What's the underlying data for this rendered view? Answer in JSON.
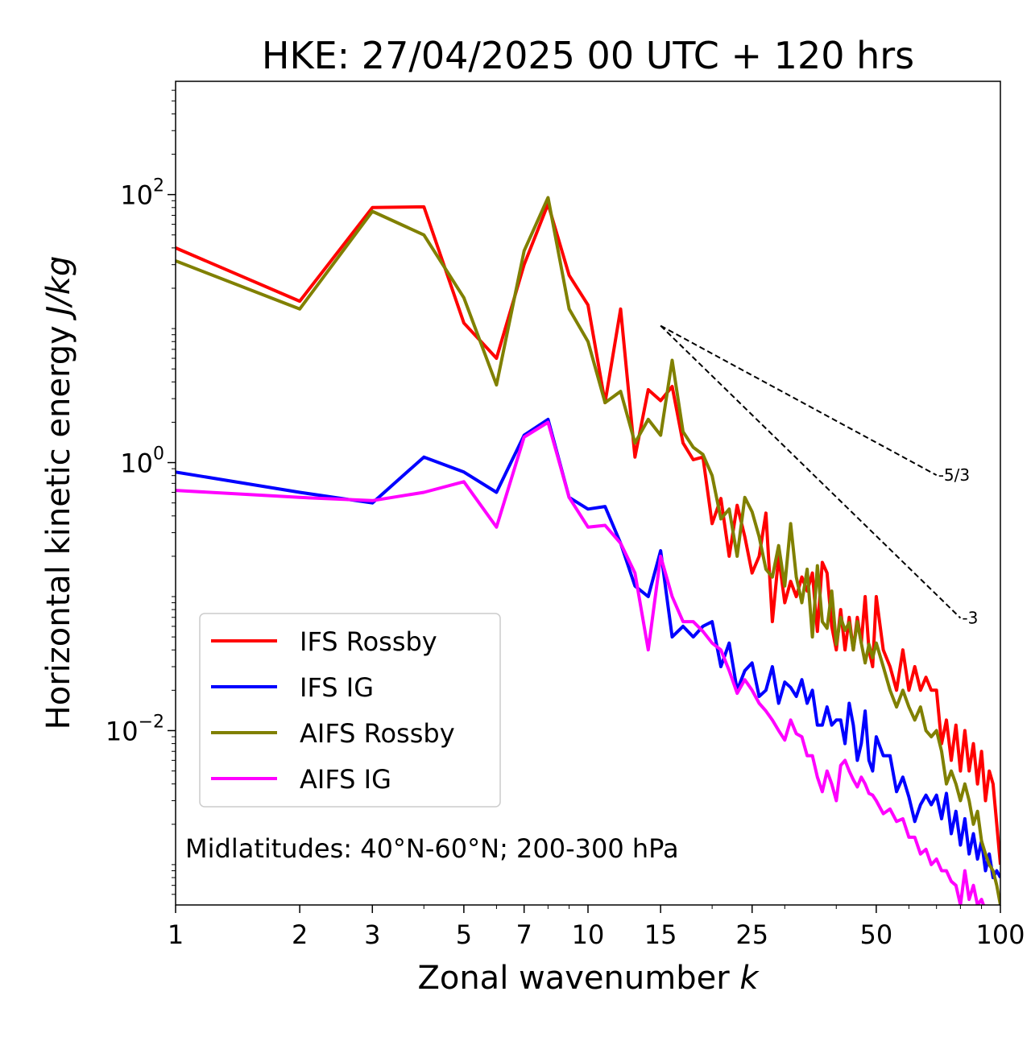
{
  "chart_data": {
    "type": "line",
    "title": "HKE: 27/04/2025 00 UTC + 120 hrs",
    "xlabel_text": "Zonal wavenumber ",
    "xlabel_var": "k",
    "ylabel_text": "Horizontal kinetic energy ",
    "ylabel_unit": "J/kg",
    "x_scale": "log",
    "y_scale": "log",
    "xlim": [
      1,
      100
    ],
    "ylim": [
      0.0005,
      700
    ],
    "x_ticks": [
      1,
      2,
      3,
      5,
      7,
      10,
      15,
      25,
      50,
      100
    ],
    "y_ticks": [
      {
        "value": 0.01,
        "base": "10",
        "exp": "−2"
      },
      {
        "value": 1,
        "base": "10",
        "exp": "0"
      },
      {
        "value": 100,
        "base": "10",
        "exp": "2"
      }
    ],
    "grid": false,
    "legend_position": "lower-left",
    "annotation": "Midlatitudes: 40°N-60°N; 200-300 hPa",
    "reference_slopes": [
      {
        "label": "-5/3",
        "slope": -1.6667,
        "x": [
          15,
          70
        ],
        "y0": 10.5
      },
      {
        "label": "-3",
        "slope": -3,
        "x": [
          15,
          80
        ],
        "y0": 10.5
      }
    ],
    "series": [
      {
        "name": "IFS Rossby",
        "color": "#ff0000",
        "x": [
          1,
          2,
          3,
          4,
          5,
          6,
          7,
          8,
          9,
          10,
          11,
          12,
          13,
          14,
          15,
          16,
          17,
          18,
          19,
          20,
          21,
          22,
          23,
          24,
          25,
          26,
          27,
          28,
          29,
          30,
          31,
          32,
          33,
          34,
          35,
          36,
          37,
          38,
          39,
          40,
          41,
          42,
          43,
          44,
          45,
          46,
          47,
          48,
          49,
          50,
          52,
          54,
          56,
          58,
          60,
          62,
          64,
          66,
          68,
          70,
          72,
          74,
          76,
          78,
          80,
          82,
          84,
          86,
          88,
          90,
          92,
          94,
          96,
          98,
          100
        ],
        "y": [
          40,
          16,
          80,
          81,
          11,
          6,
          30,
          85,
          25,
          15,
          2.8,
          14,
          1.1,
          3.5,
          2.9,
          3.7,
          1.4,
          1.05,
          1.1,
          0.35,
          0.54,
          0.2,
          0.48,
          0.28,
          0.15,
          0.2,
          0.42,
          0.065,
          0.2,
          0.09,
          0.13,
          0.1,
          0.14,
          0.11,
          0.15,
          0.055,
          0.18,
          0.15,
          0.06,
          0.04,
          0.08,
          0.04,
          0.07,
          0.04,
          0.07,
          0.045,
          0.1,
          0.04,
          0.03,
          0.1,
          0.04,
          0.03,
          0.02,
          0.04,
          0.02,
          0.03,
          0.02,
          0.025,
          0.02,
          0.02,
          0.008,
          0.012,
          0.006,
          0.011,
          0.005,
          0.01,
          0.005,
          0.008,
          0.004,
          0.007,
          0.003,
          0.005,
          0.004,
          0.002,
          0.001
        ]
      },
      {
        "name": "IFS IG",
        "color": "#0000ff",
        "x": [
          1,
          2,
          3,
          4,
          5,
          6,
          7,
          8,
          9,
          10,
          11,
          12,
          13,
          14,
          15,
          16,
          17,
          18,
          19,
          20,
          21,
          22,
          23,
          24,
          25,
          26,
          27,
          28,
          29,
          30,
          31,
          32,
          33,
          34,
          35,
          36,
          37,
          38,
          39,
          40,
          41,
          42,
          43,
          44,
          45,
          46,
          47,
          48,
          49,
          50,
          52,
          54,
          56,
          58,
          60,
          62,
          64,
          66,
          68,
          70,
          72,
          74,
          76,
          78,
          80,
          82,
          84,
          86,
          88,
          90,
          92,
          94,
          96,
          98,
          100
        ],
        "y": [
          0.85,
          0.6,
          0.5,
          1.1,
          0.85,
          0.6,
          1.6,
          2.1,
          0.55,
          0.45,
          0.47,
          0.25,
          0.12,
          0.1,
          0.22,
          0.05,
          0.06,
          0.05,
          0.06,
          0.065,
          0.03,
          0.045,
          0.02,
          0.028,
          0.032,
          0.018,
          0.02,
          0.03,
          0.016,
          0.023,
          0.021,
          0.018,
          0.024,
          0.016,
          0.02,
          0.011,
          0.011,
          0.015,
          0.011,
          0.012,
          0.012,
          0.008,
          0.016,
          0.011,
          0.006,
          0.008,
          0.014,
          0.006,
          0.005,
          0.009,
          0.0065,
          0.0065,
          0.0035,
          0.0045,
          0.0032,
          0.0021,
          0.0028,
          0.0033,
          0.0028,
          0.0033,
          0.0022,
          0.0034,
          0.0017,
          0.0025,
          0.0014,
          0.0022,
          0.0012,
          0.0017,
          0.0011,
          0.0015,
          0.0009,
          0.0012,
          0.0008,
          0.0009,
          0.0008
        ]
      },
      {
        "name": "AIFS Rossby",
        "color": "#808000",
        "x": [
          1,
          2,
          3,
          4,
          5,
          6,
          7,
          8,
          9,
          10,
          11,
          12,
          13,
          14,
          15,
          16,
          17,
          18,
          19,
          20,
          21,
          22,
          23,
          24,
          25,
          26,
          27,
          28,
          29,
          30,
          31,
          32,
          33,
          34,
          35,
          36,
          37,
          38,
          39,
          40,
          41,
          42,
          43,
          44,
          45,
          46,
          47,
          48,
          49,
          50,
          52,
          54,
          56,
          58,
          60,
          62,
          64,
          66,
          68,
          70,
          72,
          74,
          76,
          78,
          80,
          82,
          84,
          86,
          88,
          90,
          92,
          94,
          96,
          98,
          100
        ],
        "y": [
          32,
          14,
          75,
          50,
          17,
          3.8,
          38,
          95,
          14,
          8,
          2.8,
          3.4,
          1.4,
          2.1,
          1.6,
          5.8,
          1.7,
          1.3,
          1.15,
          0.8,
          0.38,
          0.45,
          0.2,
          0.55,
          0.43,
          0.28,
          0.16,
          0.14,
          0.24,
          0.12,
          0.35,
          0.14,
          0.09,
          0.16,
          0.05,
          0.17,
          0.065,
          0.058,
          0.11,
          0.044,
          0.07,
          0.056,
          0.064,
          0.04,
          0.065,
          0.045,
          0.032,
          0.044,
          0.035,
          0.045,
          0.03,
          0.02,
          0.015,
          0.02,
          0.015,
          0.012,
          0.015,
          0.01,
          0.009,
          0.01,
          0.007,
          0.004,
          0.005,
          0.004,
          0.003,
          0.004,
          0.003,
          0.002,
          0.0025,
          0.0015,
          0.0012,
          0.001,
          0.0009,
          0.0007,
          0.0005
        ]
      },
      {
        "name": "AIFS IG",
        "color": "#ff00ff",
        "x": [
          1,
          2,
          3,
          4,
          5,
          6,
          7,
          8,
          9,
          10,
          11,
          12,
          13,
          14,
          15,
          16,
          17,
          18,
          19,
          20,
          21,
          22,
          23,
          24,
          25,
          26,
          27,
          28,
          29,
          30,
          31,
          32,
          33,
          34,
          35,
          36,
          37,
          38,
          39,
          40,
          41,
          42,
          43,
          44,
          45,
          46,
          47,
          48,
          49,
          50,
          52,
          54,
          56,
          58,
          60,
          62,
          64,
          66,
          68,
          70,
          72,
          74,
          76,
          78,
          80,
          82,
          84,
          86,
          88,
          90,
          92,
          94,
          96,
          98,
          100
        ],
        "y": [
          0.62,
          0.55,
          0.52,
          0.6,
          0.72,
          0.33,
          1.55,
          2.0,
          0.55,
          0.33,
          0.34,
          0.25,
          0.15,
          0.04,
          0.2,
          0.1,
          0.065,
          0.065,
          0.055,
          0.045,
          0.04,
          0.028,
          0.019,
          0.024,
          0.02,
          0.016,
          0.014,
          0.012,
          0.01,
          0.0085,
          0.012,
          0.0095,
          0.009,
          0.0065,
          0.0065,
          0.0045,
          0.0035,
          0.005,
          0.004,
          0.003,
          0.0055,
          0.006,
          0.005,
          0.0043,
          0.0038,
          0.0045,
          0.004,
          0.0034,
          0.0033,
          0.003,
          0.0024,
          0.0026,
          0.0021,
          0.0022,
          0.0016,
          0.0016,
          0.0012,
          0.0013,
          0.001,
          0.0011,
          0.0009,
          0.0009,
          0.00075,
          0.0007,
          0.0005,
          0.0009,
          0.00055,
          0.0007,
          0.0005,
          0.00055,
          0.00045,
          0.0004,
          0.00035,
          0.0003,
          0.00025
        ]
      }
    ]
  }
}
